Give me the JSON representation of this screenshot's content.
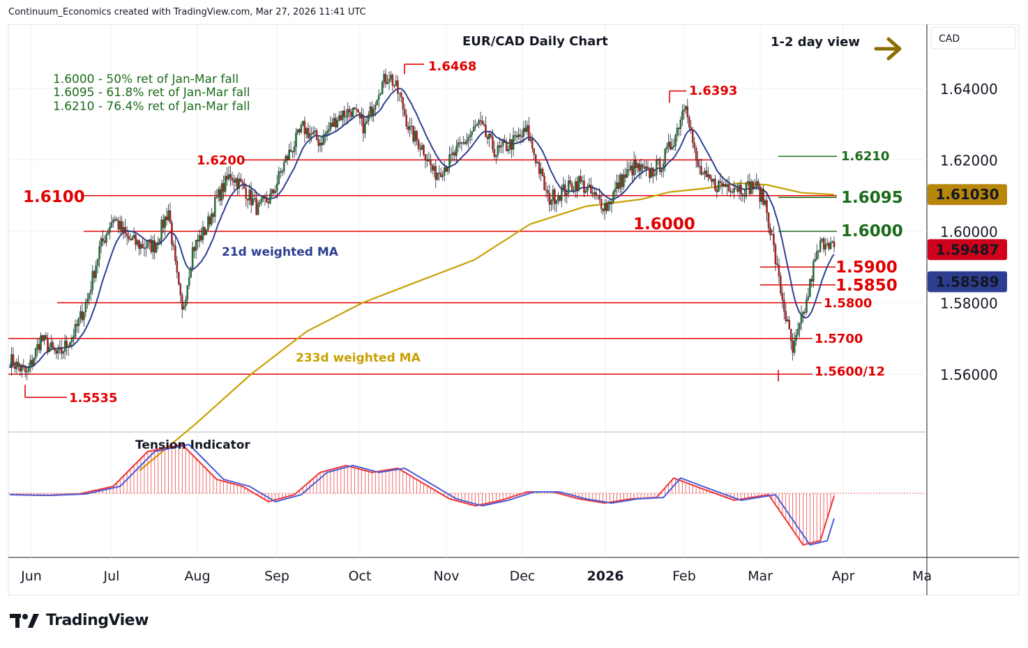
{
  "header": "Continuum_Economics created with TradingView.com, Mar 27, 2026 11:41 UTC",
  "brand": "TradingView",
  "chart_data": {
    "type": "candlestick",
    "title": "EUR/CAD Daily Chart",
    "view": "1-2 day view",
    "axis_currency": "CAD",
    "y_ticks": [
      "1.64000",
      "1.62000",
      "1.60000",
      "1.58000",
      "1.56000"
    ],
    "ylim": [
      1.5495,
      1.6505
    ],
    "x_labels": [
      "Jun",
      "Jul",
      "Aug",
      "Sep",
      "Oct",
      "Nov",
      "Dec",
      "2026",
      "Feb",
      "Mar",
      "Apr",
      "Ma"
    ],
    "price_badges": [
      {
        "text": "1.61030",
        "value": 1.6103,
        "color": "#b8860b",
        "text_color": "#ffffff"
      },
      {
        "text": "1.59487",
        "value": 1.59487,
        "color": "#d0021b",
        "text_color": "#ffffff"
      },
      {
        "text": "1.58589",
        "value": 1.58589,
        "color": "#2d3e91",
        "text_color": "#ffffff"
      }
    ],
    "notes": [
      "1.6000 - 50% ret of Jan-Mar fall",
      "1.6095 - 61.8% ret of Jan-Mar fall",
      "1.6210 - 76.4% ret of Jan-Mar fall"
    ],
    "levels": [
      {
        "label": "1.6468",
        "value": 1.6468
      },
      {
        "label": "1.6393",
        "value": 1.6393
      },
      {
        "label": "1.6200",
        "value": 1.62
      },
      {
        "label": "1.6100",
        "value": 1.61
      },
      {
        "label": "1.6000",
        "value": 1.6
      },
      {
        "label": "1.5900",
        "value": 1.59
      },
      {
        "label": "1.5850",
        "value": 1.585
      },
      {
        "label": "1.5800",
        "value": 1.58
      },
      {
        "label": "1.5700",
        "value": 1.57
      },
      {
        "label": "1.5600/12",
        "value": 1.56
      },
      {
        "label": "1.5535",
        "value": 1.5535
      }
    ],
    "green_levels": [
      {
        "label": "1.6210",
        "value": 1.621
      },
      {
        "label": "1.6095",
        "value": 1.6095
      },
      {
        "label": "1.6000",
        "value": 1.6
      }
    ],
    "ma_labels": [
      "21d weighted MA",
      "233d weighted MA"
    ],
    "indicator_title": "Tension Indicator",
    "series": [
      {
        "name": "21d weighted MA",
        "color": "#2d3e91"
      },
      {
        "name": "233d weighted MA",
        "color": "#c8a000"
      }
    ],
    "colors": {
      "up": "#1e7b34",
      "down": "#c41e1e",
      "level": "#e00000",
      "green_level": "#1b6b1b",
      "arrow": "#8a6d00"
    }
  }
}
